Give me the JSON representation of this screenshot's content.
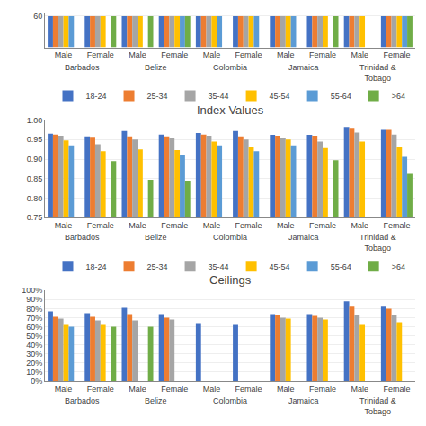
{
  "chart_data": [
    {
      "type": "bar",
      "categories": [
        "Male",
        "Female",
        "Male",
        "Female",
        "Male",
        "Female",
        "Male",
        "Female",
        "Male",
        "Female"
      ],
      "group_labels": [
        "Barbados",
        "Belize",
        "Colombia",
        "Jamaica",
        "Trinidad &\nTobago"
      ],
      "series": [
        {
          "name": "18-24",
          "color": "#4472C4",
          "values": [
            60,
            60,
            60,
            60,
            60,
            60,
            60,
            60,
            60,
            60
          ]
        },
        {
          "name": "25-34",
          "color": "#ED7D31",
          "values": [
            60,
            60,
            60,
            60,
            60,
            60,
            60,
            60,
            60,
            60
          ]
        },
        {
          "name": "35-44",
          "color": "#A5A5A5",
          "values": [
            60,
            60,
            60,
            60,
            60,
            60,
            60,
            60,
            60,
            60
          ]
        },
        {
          "name": "45-54",
          "color": "#FFC000",
          "values": [
            60,
            60,
            60,
            60,
            60,
            60,
            60,
            60,
            60,
            60
          ]
        },
        {
          "name": "55-64",
          "color": "#5B9BD5",
          "values": [
            60,
            null,
            null,
            60,
            60,
            60,
            60,
            null,
            null,
            60
          ]
        },
        {
          "name": ">64",
          "color": "#70AD47",
          "values": [
            null,
            60,
            60,
            60,
            null,
            null,
            null,
            60,
            null,
            60
          ]
        }
      ],
      "ylim": [
        0,
        65
      ],
      "yticks": [
        60
      ],
      "grid": true,
      "legend": "bottom"
    },
    {
      "type": "bar",
      "title": "Index Values",
      "categories": [
        "Male",
        "Female",
        "Male",
        "Female",
        "Male",
        "Female",
        "Male",
        "Female",
        "Male",
        "Female"
      ],
      "group_labels": [
        "Barbados",
        "Belize",
        "Colombia",
        "Jamaica",
        "Trinidad &\nTobago"
      ],
      "series": [
        {
          "name": "18-24",
          "color": "#4472C4",
          "values": [
            0.965,
            0.958,
            0.972,
            0.963,
            0.967,
            0.972,
            0.962,
            0.962,
            0.982,
            0.975
          ]
        },
        {
          "name": "25-34",
          "color": "#ED7D31",
          "values": [
            0.963,
            0.957,
            0.958,
            0.958,
            0.963,
            0.958,
            0.96,
            0.96,
            0.98,
            0.975
          ]
        },
        {
          "name": "35-44",
          "color": "#A5A5A5",
          "values": [
            0.96,
            0.938,
            0.95,
            0.955,
            0.96,
            0.95,
            0.953,
            0.945,
            0.968,
            0.963
          ]
        },
        {
          "name": "45-54",
          "color": "#FFC000",
          "values": [
            0.948,
            0.92,
            0.925,
            0.923,
            0.945,
            0.93,
            0.95,
            0.928,
            0.945,
            0.93
          ]
        },
        {
          "name": "55-64",
          "color": "#5B9BD5",
          "values": [
            0.935,
            null,
            null,
            0.91,
            0.935,
            0.92,
            0.935,
            null,
            null,
            0.906
          ]
        },
        {
          "name": ">64",
          "color": "#70AD47",
          "values": [
            null,
            0.895,
            0.847,
            0.845,
            null,
            null,
            null,
            0.897,
            null,
            0.862
          ]
        }
      ],
      "ylim": [
        0.75,
        1.0
      ],
      "yticks": [
        0.75,
        {
          "value": 0.8,
          "label": "0.80"
        },
        0.85,
        {
          "value": 0.9,
          "label": "0.90"
        },
        0.95,
        {
          "value": 1.0,
          "label": "1.00"
        }
      ],
      "grid": true,
      "legend": "bottom"
    },
    {
      "type": "bar",
      "title": "Ceilings",
      "categories": [
        "Male",
        "Female",
        "Male",
        "Female",
        "Male",
        "Female",
        "Male",
        "Female",
        "Male",
        "Female"
      ],
      "group_labels": [
        "Barbados",
        "Belize",
        "Colombia",
        "Jamaica",
        "Trinidad &\nTobago"
      ],
      "series": [
        {
          "name": "18-24",
          "color": "#4472C4",
          "values": [
            0.77,
            0.75,
            0.81,
            0.74,
            0.64,
            0.62,
            0.74,
            0.74,
            0.88,
            0.82
          ]
        },
        {
          "name": "25-34",
          "color": "#ED7D31",
          "values": [
            0.71,
            0.71,
            0.74,
            0.7,
            null,
            null,
            0.73,
            0.72,
            0.82,
            0.8
          ]
        },
        {
          "name": "35-44",
          "color": "#A5A5A5",
          "values": [
            0.69,
            0.67,
            0.67,
            0.68,
            null,
            null,
            0.7,
            0.7,
            0.73,
            0.73
          ]
        },
        {
          "name": "45-54",
          "color": "#FFC000",
          "values": [
            0.62,
            0.62,
            null,
            null,
            null,
            null,
            0.69,
            0.68,
            0.62,
            0.65
          ]
        },
        {
          "name": "55-64",
          "color": "#5B9BD5",
          "values": [
            0.6,
            null,
            null,
            null,
            null,
            null,
            null,
            null,
            null,
            null
          ]
        },
        {
          "name": ">64",
          "color": "#70AD47",
          "values": [
            null,
            0.6,
            0.6,
            null,
            null,
            null,
            null,
            null,
            null,
            null
          ]
        }
      ],
      "ylim": [
        0,
        1.0
      ],
      "yticks": [
        {
          "value": 0,
          "label": "0%"
        },
        {
          "value": 0.1,
          "label": "10%"
        },
        {
          "value": 0.2,
          "label": "20%"
        },
        {
          "value": 0.3,
          "label": "30%"
        },
        {
          "value": 0.4,
          "label": "40%"
        },
        {
          "value": 0.5,
          "label": "50%"
        },
        {
          "value": 0.6,
          "label": "60%"
        },
        {
          "value": 0.7,
          "label": "70%"
        },
        {
          "value": 0.8,
          "label": "80%"
        },
        {
          "value": 0.9,
          "label": "90%"
        },
        {
          "value": 1.0,
          "label": "100%"
        }
      ],
      "grid": true
    }
  ]
}
